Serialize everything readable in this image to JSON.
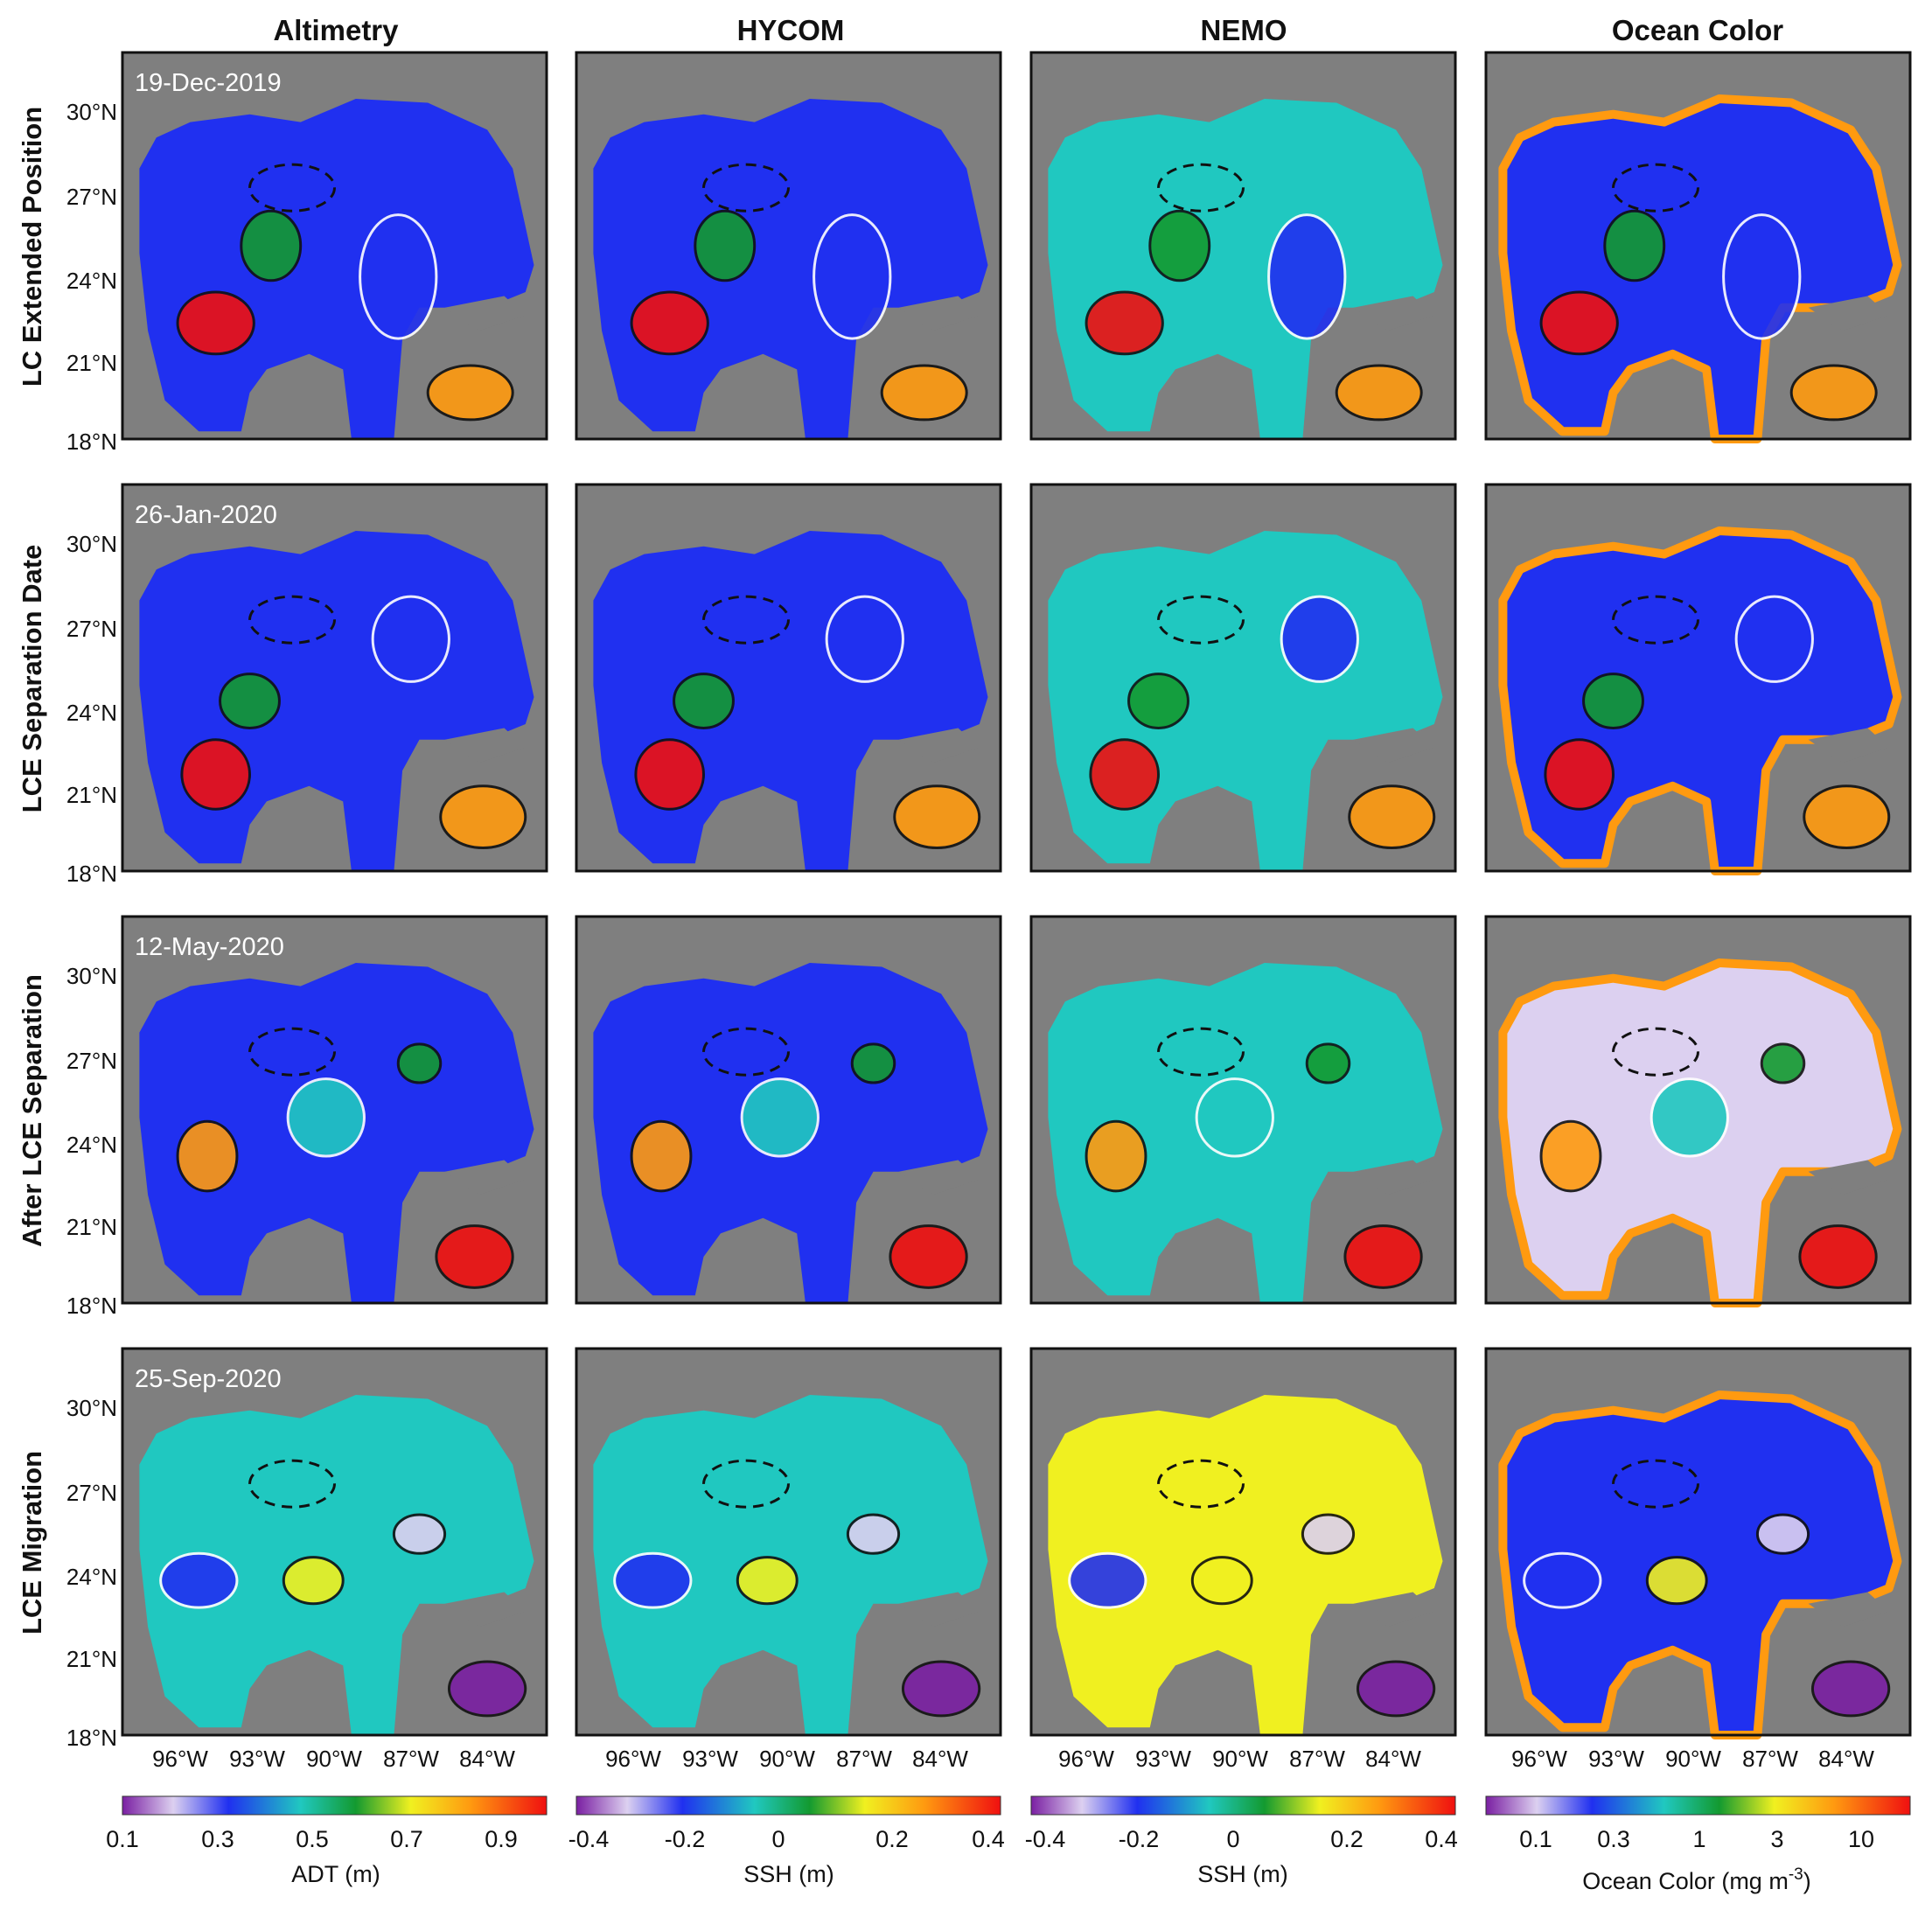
{
  "figure": {
    "columns": [
      "Altimetry",
      "HYCOM",
      "NEMO",
      "Ocean Color"
    ],
    "rows": [
      {
        "label": "LC Extended Position",
        "date": "19-Dec-2019"
      },
      {
        "label": "LCE Separation Date",
        "date": "26-Jan-2020"
      },
      {
        "label": "After LCE Separation",
        "date": "12-May-2020"
      },
      {
        "label": "LCE Migration",
        "date": "25-Sep-2020"
      }
    ],
    "lat_ticks": [
      "30°N",
      "27°N",
      "24°N",
      "21°N",
      "18°N"
    ],
    "lon_ticks": [
      "96°W",
      "93°W",
      "90°W",
      "87°W",
      "84°W"
    ]
  },
  "colorbars": [
    {
      "ticks": [
        "0.1",
        "0.3",
        "0.5",
        "0.7",
        "0.9"
      ],
      "label": "ADT (m)"
    },
    {
      "ticks": [
        "-0.4",
        "-0.2",
        "0",
        "0.2",
        "0.4"
      ],
      "label": "SSH (m)"
    },
    {
      "ticks": [
        "-0.4",
        "-0.2",
        "0",
        "0.2",
        "0.4"
      ],
      "label": "SSH (m)"
    },
    {
      "ticks": [
        "0.1",
        "0.3",
        "1",
        "3",
        "10"
      ],
      "label": "Ocean Color (mg m",
      "label_sup": "-3",
      "label_end": ")"
    }
  ],
  "colors": {
    "land": "#7f7f7f",
    "colormap": [
      "#7a1fa2",
      "#dcd0f0",
      "#2030f0",
      "#20c8c0",
      "#139a30",
      "#f0f020",
      "#ff9a10",
      "#f01010"
    ]
  }
}
